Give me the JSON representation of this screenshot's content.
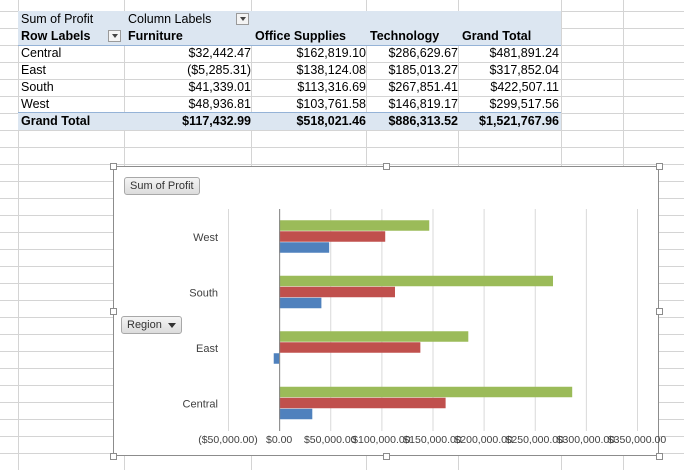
{
  "pivot": {
    "value_field": "Sum of Profit",
    "column_labels": "Column Labels",
    "row_labels": "Row Labels",
    "columns": [
      "Furniture",
      "Office Supplies",
      "Technology",
      "Grand Total"
    ],
    "rows": [
      {
        "label": "Central",
        "values": [
          "$32,442.47",
          "$162,819.10",
          "$286,629.67",
          "$481,891.24"
        ]
      },
      {
        "label": "East",
        "values": [
          "($5,285.31)",
          "$138,124.08",
          "$185,013.27",
          "$317,852.04"
        ]
      },
      {
        "label": "South",
        "values": [
          "$41,339.01",
          "$113,316.69",
          "$267,851.41",
          "$422,507.11"
        ]
      },
      {
        "label": "West",
        "values": [
          "$48,936.81",
          "$103,761.58",
          "$146,819.17",
          "$299,517.56"
        ]
      }
    ],
    "grand_total": {
      "label": "Grand Total",
      "values": [
        "$117,432.99",
        "$518,021.46",
        "$886,313.52",
        "$1,521,767.96"
      ]
    }
  },
  "chart_buttons": {
    "value_field": "Sum of Profit",
    "axis_field": "Region"
  },
  "chart_data": {
    "type": "bar",
    "orientation": "horizontal",
    "categories": [
      "Central",
      "East",
      "South",
      "West"
    ],
    "series": [
      {
        "name": "Furniture",
        "color": "#4f81bd",
        "values": [
          32442.47,
          -5285.31,
          41339.01,
          48936.81
        ]
      },
      {
        "name": "Office Supplies",
        "color": "#c0504d",
        "values": [
          162819.1,
          138124.08,
          113316.69,
          103761.58
        ]
      },
      {
        "name": "Technology",
        "color": "#9bbb59",
        "values": [
          286629.67,
          185013.27,
          267851.41,
          146819.17
        ]
      }
    ],
    "xlim": [
      -50000,
      350000
    ],
    "x_ticks": [
      -50000,
      0,
      50000,
      100000,
      150000,
      200000,
      250000,
      300000,
      350000
    ],
    "x_tick_labels": [
      "($50,000.00)",
      "$0.00",
      "$50,000.00",
      "$100,000.00",
      "$150,000.00",
      "$200,000.00",
      "$250,000.00",
      "$300,000.00",
      "$350,000.00"
    ],
    "grid": true,
    "legend": "none"
  }
}
